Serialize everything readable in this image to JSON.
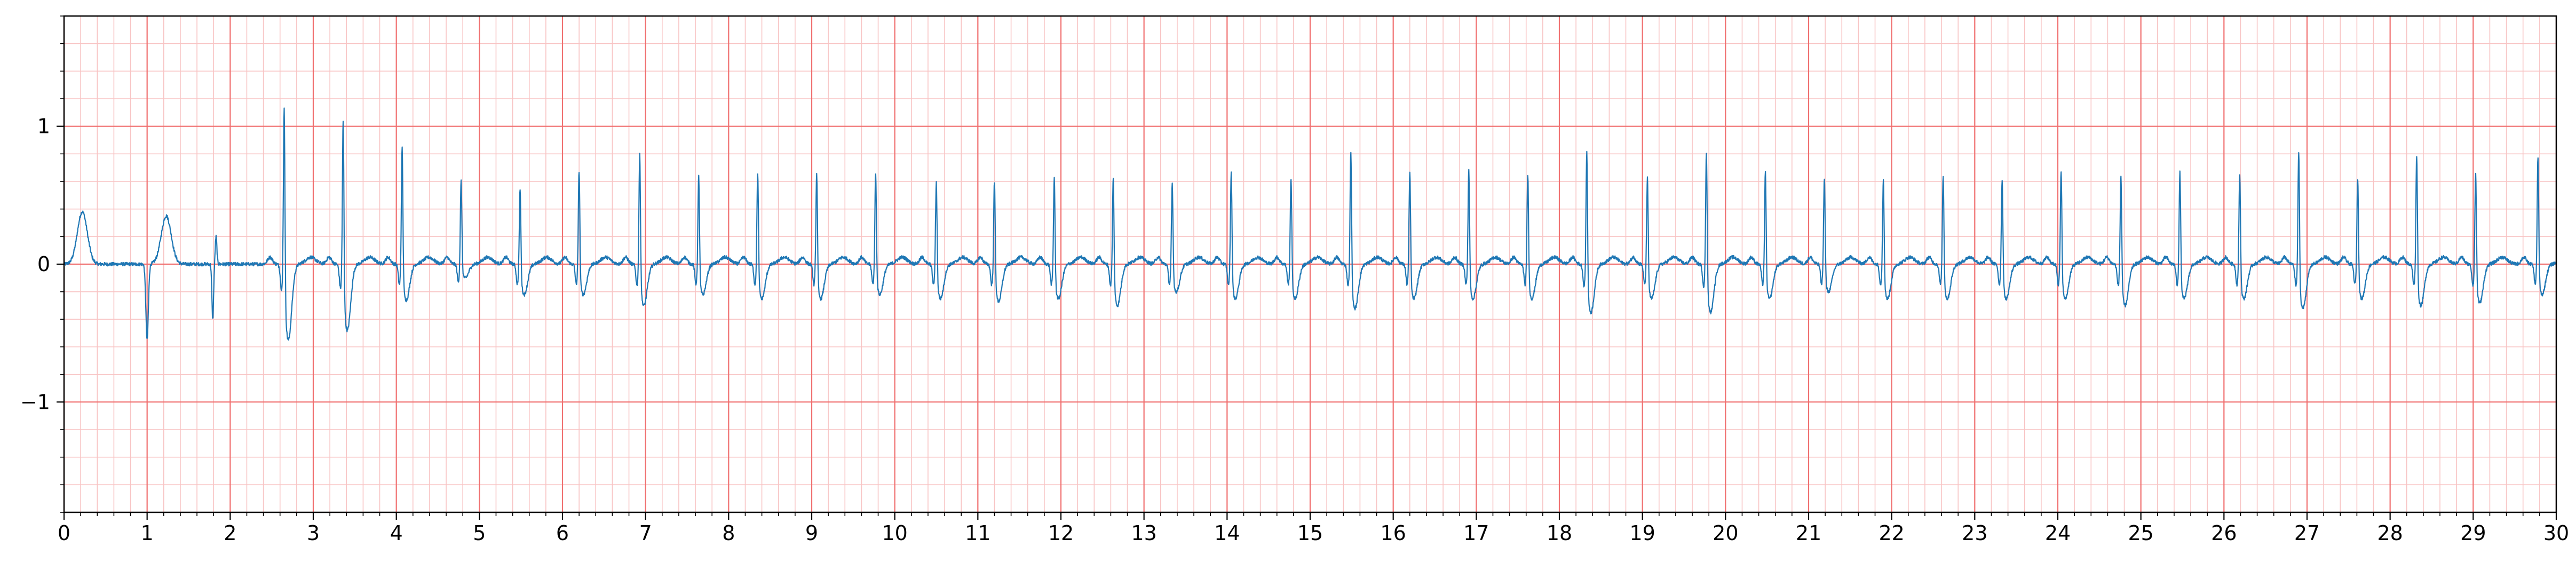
{
  "chart_data": {
    "type": "line",
    "title": "",
    "xlabel": "",
    "ylabel": "",
    "xlim": [
      0,
      30
    ],
    "ylim": [
      -1.8,
      1.8
    ],
    "x_ticks": [
      0,
      1,
      2,
      3,
      4,
      5,
      6,
      7,
      8,
      9,
      10,
      11,
      12,
      13,
      14,
      15,
      16,
      17,
      18,
      19,
      20,
      21,
      22,
      23,
      24,
      25,
      26,
      27,
      28,
      29,
      30
    ],
    "x_tick_labels": [
      "0",
      "1",
      "2",
      "3",
      "4",
      "5",
      "6",
      "7",
      "8",
      "9",
      "10",
      "11",
      "12",
      "13",
      "14",
      "15",
      "16",
      "17",
      "18",
      "19",
      "20",
      "21",
      "22",
      "23",
      "24",
      "25",
      "26",
      "27",
      "28",
      "29",
      "30"
    ],
    "y_ticks": [
      -1,
      0,
      1
    ],
    "y_tick_labels": [
      "−1",
      "0",
      "1"
    ],
    "grid": {
      "major": true,
      "minor": true,
      "major_x_step": 1,
      "major_y_step": 1,
      "minor_x_step": 0.2,
      "minor_y_step": 0.2,
      "major_color": "#f07070",
      "minor_color": "#f8c4c4"
    },
    "line_color": "#1f77b4",
    "events": [
      {
        "t": 0.22,
        "type": "bump",
        "amp": 0.38
      },
      {
        "t": 1.0,
        "type": "spike",
        "amp": -0.55
      },
      {
        "t": 1.23,
        "type": "bump",
        "amp": 0.35
      },
      {
        "t": 1.79,
        "type": "small",
        "amp": -0.4
      },
      {
        "t": 1.83,
        "type": "small",
        "amp": 0.2
      },
      {
        "t": 2.65,
        "type": "beat",
        "amp": 1.38,
        "sdepth": -0.55
      },
      {
        "t": 3.36,
        "type": "beat",
        "amp": 1.25,
        "sdepth": -0.48
      },
      {
        "t": 4.07,
        "type": "beat",
        "amp": 0.96,
        "sdepth": -0.26
      },
      {
        "t": 4.78,
        "type": "beat",
        "amp": 0.65,
        "sdepth": -0.1
      },
      {
        "t": 5.49,
        "type": "beat",
        "amp": 0.65,
        "sdepth": -0.22
      },
      {
        "t": 6.2,
        "type": "beat",
        "amp": 0.78,
        "sdepth": -0.22
      },
      {
        "t": 6.93,
        "type": "beat",
        "amp": 0.93,
        "sdepth": -0.3
      },
      {
        "t": 7.64,
        "type": "beat",
        "amp": 0.74,
        "sdepth": -0.22
      },
      {
        "t": 8.35,
        "type": "beat",
        "amp": 0.78,
        "sdepth": -0.25
      },
      {
        "t": 9.06,
        "type": "beat",
        "amp": 0.77,
        "sdepth": -0.25
      },
      {
        "t": 9.77,
        "type": "beat",
        "amp": 0.76,
        "sdepth": -0.22
      },
      {
        "t": 10.5,
        "type": "beat",
        "amp": 0.71,
        "sdepth": -0.25
      },
      {
        "t": 11.2,
        "type": "beat",
        "amp": 0.72,
        "sdepth": -0.27
      },
      {
        "t": 11.92,
        "type": "beat",
        "amp": 0.74,
        "sdepth": -0.25
      },
      {
        "t": 12.63,
        "type": "beat",
        "amp": 0.76,
        "sdepth": -0.3
      },
      {
        "t": 13.34,
        "type": "beat",
        "amp": 0.67,
        "sdepth": -0.2
      },
      {
        "t": 14.05,
        "type": "beat",
        "amp": 0.78,
        "sdepth": -0.25
      },
      {
        "t": 14.77,
        "type": "beat",
        "amp": 0.74,
        "sdepth": -0.25
      },
      {
        "t": 15.49,
        "type": "beat",
        "amp": 0.96,
        "sdepth": -0.32
      },
      {
        "t": 16.2,
        "type": "beat",
        "amp": 0.78,
        "sdepth": -0.25
      },
      {
        "t": 16.91,
        "type": "beat",
        "amp": 0.8,
        "sdepth": -0.25
      },
      {
        "t": 17.62,
        "type": "beat",
        "amp": 0.77,
        "sdepth": -0.25
      },
      {
        "t": 18.33,
        "type": "beat",
        "amp": 0.97,
        "sdepth": -0.35
      },
      {
        "t": 19.06,
        "type": "beat",
        "amp": 0.74,
        "sdepth": -0.25
      },
      {
        "t": 19.77,
        "type": "beat",
        "amp": 0.97,
        "sdepth": -0.35
      },
      {
        "t": 20.48,
        "type": "beat",
        "amp": 0.78,
        "sdepth": -0.25
      },
      {
        "t": 21.19,
        "type": "beat",
        "amp": 0.72,
        "sdepth": -0.2
      },
      {
        "t": 21.9,
        "type": "beat",
        "amp": 0.73,
        "sdepth": -0.25
      },
      {
        "t": 22.62,
        "type": "beat",
        "amp": 0.76,
        "sdepth": -0.25
      },
      {
        "t": 23.33,
        "type": "beat",
        "amp": 0.73,
        "sdepth": -0.25
      },
      {
        "t": 24.04,
        "type": "beat",
        "amp": 0.78,
        "sdepth": -0.25
      },
      {
        "t": 24.76,
        "type": "beat",
        "amp": 0.78,
        "sdepth": -0.3
      },
      {
        "t": 25.47,
        "type": "beat",
        "amp": 0.78,
        "sdepth": -0.25
      },
      {
        "t": 26.19,
        "type": "beat",
        "amp": 0.77,
        "sdepth": -0.25
      },
      {
        "t": 26.9,
        "type": "beat",
        "amp": 0.96,
        "sdepth": -0.32
      },
      {
        "t": 27.61,
        "type": "beat",
        "amp": 0.74,
        "sdepth": -0.25
      },
      {
        "t": 28.32,
        "type": "beat",
        "amp": 0.93,
        "sdepth": -0.3
      },
      {
        "t": 29.03,
        "type": "beat",
        "amp": 0.79,
        "sdepth": -0.28
      },
      {
        "t": 29.78,
        "type": "beat",
        "amp": 0.88,
        "sdepth": -0.22
      }
    ]
  }
}
